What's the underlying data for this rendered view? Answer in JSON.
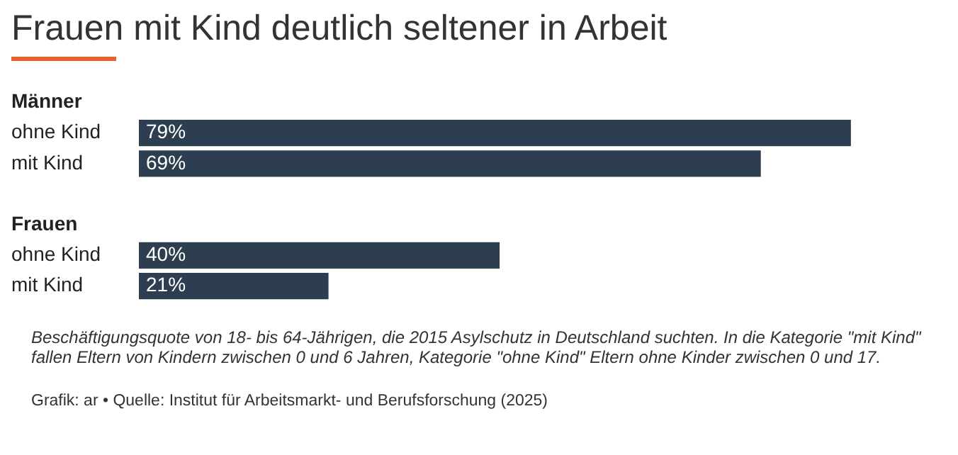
{
  "chart_data": {
    "type": "bar",
    "orientation": "horizontal",
    "title": "Frauen mit Kind deutlich seltener in Arbeit",
    "categories": [
      "Männer",
      "ohne Kind",
      "mit Kind",
      null,
      "Frauen",
      "ohne Kind",
      "mit Kind"
    ],
    "values": [
      null,
      79,
      69,
      null,
      null,
      40,
      21
    ],
    "value_labels": [
      null,
      "79%",
      "69%",
      null,
      null,
      "40%",
      "21%"
    ],
    "color": "#2c3e50",
    "grid": false,
    "legend": false,
    "annotations": [
      "Beschäftigungsquote von 18- bis 64-Jährigen, die 2015 Asylschutz in Deutschland suchten. In die Kategorie \"mit Kind\" fallen Eltern von Kindern zwischen 0 und 6 Jahren, Kategorie \"ohne Kind\" Eltern ohne Kinder zwischen 0 und 17.",
      "Grafik: ar • Quelle: Institut für Arbeitsmarkt- und Berufsforschung (2025)"
    ]
  }
}
